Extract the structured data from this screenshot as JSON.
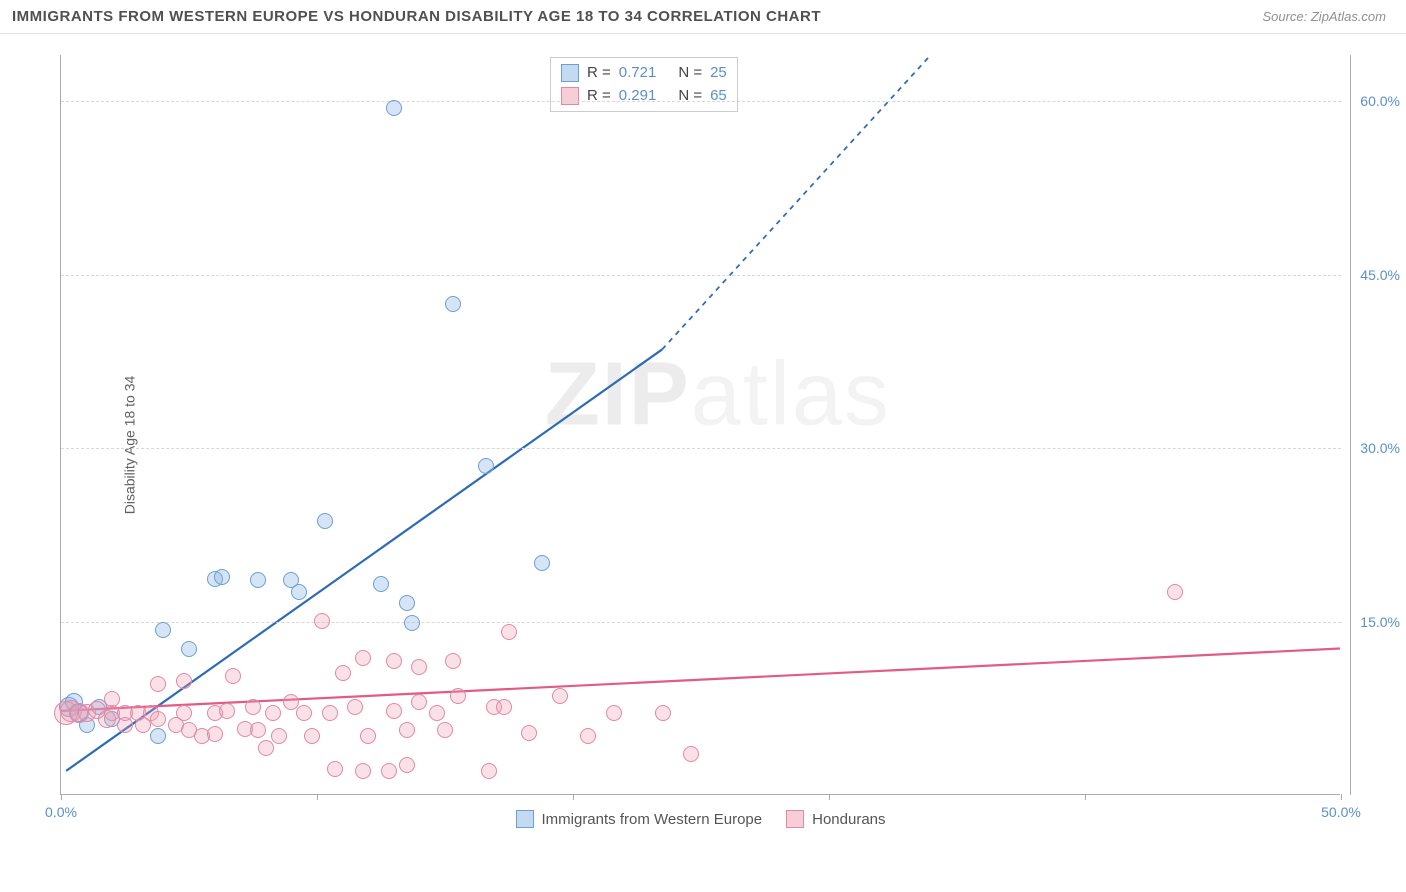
{
  "header": {
    "title": "IMMIGRANTS FROM WESTERN EUROPE VS HONDURAN DISABILITY AGE 18 TO 34 CORRELATION CHART",
    "source_prefix": "Source: ",
    "source_name": "ZipAtlas.com"
  },
  "watermark": {
    "zip": "ZIP",
    "atlas": "atlas"
  },
  "chart": {
    "type": "scatter",
    "y_axis_label": "Disability Age 18 to 34",
    "background_color": "#ffffff",
    "grid_color": "#d8d8d8",
    "axis_color": "#aaaaaa",
    "text_color": "#606060",
    "tick_label_color": "#5b8fc9",
    "xlim": [
      0,
      50
    ],
    "ylim": [
      0,
      64
    ],
    "y_ticks": [
      15,
      30,
      45,
      60
    ],
    "y_tick_labels": [
      "15.0%",
      "30.0%",
      "45.0%",
      "60.0%"
    ],
    "x_ticks_percent": [
      0,
      10,
      20,
      30,
      40,
      50
    ],
    "x_tick_labels": {
      "0": "0.0%",
      "50": "50.0%"
    },
    "legend_top": {
      "rows": [
        {
          "color": "blue",
          "r_label": "R =",
          "r_value": "0.721",
          "n_label": "N =",
          "n_value": "25"
        },
        {
          "color": "pink",
          "r_label": "R =",
          "r_value": "0.291",
          "n_label": "N =",
          "n_value": "65"
        }
      ]
    },
    "legend_bottom": {
      "items": [
        {
          "color": "blue",
          "label": "Immigrants from Western Europe"
        },
        {
          "color": "pink",
          "label": "Hondurans"
        }
      ]
    },
    "series": [
      {
        "name": "Immigrants from Western Europe",
        "color_class": "blue",
        "marker_radius": 8,
        "trend": {
          "color": "#2d6bb5",
          "width": 2.2,
          "x1": 0.2,
          "y1": 2.0,
          "x2": 23.5,
          "y2": 38.5,
          "dash_extend_x": 34.0,
          "dash_extend_y": 64.0
        },
        "points": [
          {
            "x": 0.3,
            "y": 7.5,
            "r": 10
          },
          {
            "x": 0.5,
            "y": 8.0,
            "r": 9
          },
          {
            "x": 0.7,
            "y": 7.0,
            "r": 9
          },
          {
            "x": 1.0,
            "y": 6.0,
            "r": 8
          },
          {
            "x": 1.5,
            "y": 7.5,
            "r": 8
          },
          {
            "x": 2.0,
            "y": 6.5,
            "r": 8
          },
          {
            "x": 3.8,
            "y": 5.0,
            "r": 8
          },
          {
            "x": 4.0,
            "y": 14.2,
            "r": 8
          },
          {
            "x": 5.0,
            "y": 12.5,
            "r": 8
          },
          {
            "x": 6.0,
            "y": 18.6,
            "r": 8
          },
          {
            "x": 6.3,
            "y": 18.8,
            "r": 8
          },
          {
            "x": 7.7,
            "y": 18.5,
            "r": 8
          },
          {
            "x": 9.3,
            "y": 17.5,
            "r": 8
          },
          {
            "x": 9.0,
            "y": 18.5,
            "r": 8
          },
          {
            "x": 10.3,
            "y": 23.6,
            "r": 8
          },
          {
            "x": 12.5,
            "y": 18.2,
            "r": 8
          },
          {
            "x": 13.0,
            "y": 59.3,
            "r": 8
          },
          {
            "x": 13.5,
            "y": 16.5,
            "r": 8
          },
          {
            "x": 13.7,
            "y": 14.8,
            "r": 8
          },
          {
            "x": 15.3,
            "y": 42.4,
            "r": 8
          },
          {
            "x": 16.6,
            "y": 28.4,
            "r": 8
          },
          {
            "x": 18.8,
            "y": 20.0,
            "r": 8
          }
        ]
      },
      {
        "name": "Hondurans",
        "color_class": "pink",
        "marker_radius": 8,
        "trend": {
          "color": "#e15b86",
          "width": 2.2,
          "x1": 0.0,
          "y1": 7.2,
          "x2": 50.0,
          "y2": 12.6
        },
        "points": [
          {
            "x": 0.2,
            "y": 7.0,
            "r": 12
          },
          {
            "x": 0.4,
            "y": 7.2,
            "r": 11
          },
          {
            "x": 0.7,
            "y": 7.0,
            "r": 10
          },
          {
            "x": 1.0,
            "y": 7.0,
            "r": 9
          },
          {
            "x": 1.4,
            "y": 7.3,
            "r": 9
          },
          {
            "x": 1.8,
            "y": 6.5,
            "r": 9
          },
          {
            "x": 2.0,
            "y": 7.0,
            "r": 8
          },
          {
            "x": 2.0,
            "y": 8.2,
            "r": 8
          },
          {
            "x": 2.5,
            "y": 6.0,
            "r": 8
          },
          {
            "x": 2.5,
            "y": 7.0,
            "r": 8
          },
          {
            "x": 3.0,
            "y": 7.0,
            "r": 8
          },
          {
            "x": 3.2,
            "y": 6.0,
            "r": 8
          },
          {
            "x": 3.5,
            "y": 7.0,
            "r": 8
          },
          {
            "x": 3.8,
            "y": 9.5,
            "r": 8
          },
          {
            "x": 3.8,
            "y": 6.5,
            "r": 8
          },
          {
            "x": 4.5,
            "y": 6.0,
            "r": 8
          },
          {
            "x": 4.8,
            "y": 7.0,
            "r": 8
          },
          {
            "x": 4.8,
            "y": 9.8,
            "r": 8
          },
          {
            "x": 5.0,
            "y": 5.5,
            "r": 8
          },
          {
            "x": 5.5,
            "y": 5.0,
            "r": 8
          },
          {
            "x": 6.0,
            "y": 7.0,
            "r": 8
          },
          {
            "x": 6.0,
            "y": 5.2,
            "r": 8
          },
          {
            "x": 6.5,
            "y": 7.2,
            "r": 8
          },
          {
            "x": 6.7,
            "y": 10.2,
            "r": 8
          },
          {
            "x": 7.2,
            "y": 5.6,
            "r": 8
          },
          {
            "x": 7.5,
            "y": 7.5,
            "r": 8
          },
          {
            "x": 7.7,
            "y": 5.5,
            "r": 8
          },
          {
            "x": 8.0,
            "y": 4.0,
            "r": 8
          },
          {
            "x": 8.3,
            "y": 7.0,
            "r": 8
          },
          {
            "x": 8.5,
            "y": 5.0,
            "r": 8
          },
          {
            "x": 9.0,
            "y": 8.0,
            "r": 8
          },
          {
            "x": 9.5,
            "y": 7.0,
            "r": 8
          },
          {
            "x": 9.8,
            "y": 5.0,
            "r": 8
          },
          {
            "x": 10.2,
            "y": 15.0,
            "r": 8
          },
          {
            "x": 10.5,
            "y": 7.0,
            "r": 8
          },
          {
            "x": 10.7,
            "y": 2.2,
            "r": 8
          },
          {
            "x": 11.0,
            "y": 10.5,
            "r": 8
          },
          {
            "x": 11.5,
            "y": 7.5,
            "r": 8
          },
          {
            "x": 11.8,
            "y": 11.8,
            "r": 8
          },
          {
            "x": 11.8,
            "y": 2.0,
            "r": 8
          },
          {
            "x": 12.0,
            "y": 5.0,
            "r": 8
          },
          {
            "x": 12.8,
            "y": 2.0,
            "r": 8
          },
          {
            "x": 13.0,
            "y": 11.5,
            "r": 8
          },
          {
            "x": 13.0,
            "y": 7.2,
            "r": 8
          },
          {
            "x": 13.5,
            "y": 5.5,
            "r": 8
          },
          {
            "x": 13.5,
            "y": 2.5,
            "r": 8
          },
          {
            "x": 14.0,
            "y": 8.0,
            "r": 8
          },
          {
            "x": 14.0,
            "y": 11.0,
            "r": 8
          },
          {
            "x": 14.7,
            "y": 7.0,
            "r": 8
          },
          {
            "x": 15.0,
            "y": 5.5,
            "r": 8
          },
          {
            "x": 15.3,
            "y": 11.5,
            "r": 8
          },
          {
            "x": 15.5,
            "y": 8.5,
            "r": 8
          },
          {
            "x": 16.7,
            "y": 2.0,
            "r": 8
          },
          {
            "x": 16.9,
            "y": 7.5,
            "r": 8
          },
          {
            "x": 17.3,
            "y": 7.5,
            "r": 8
          },
          {
            "x": 17.5,
            "y": 14.0,
            "r": 8
          },
          {
            "x": 18.3,
            "y": 5.3,
            "r": 8
          },
          {
            "x": 19.5,
            "y": 8.5,
            "r": 8
          },
          {
            "x": 20.6,
            "y": 5.0,
            "r": 8
          },
          {
            "x": 21.6,
            "y": 7.0,
            "r": 8
          },
          {
            "x": 23.5,
            "y": 7.0,
            "r": 8
          },
          {
            "x": 24.6,
            "y": 3.5,
            "r": 8
          },
          {
            "x": 43.5,
            "y": 17.5,
            "r": 8
          }
        ]
      }
    ]
  }
}
